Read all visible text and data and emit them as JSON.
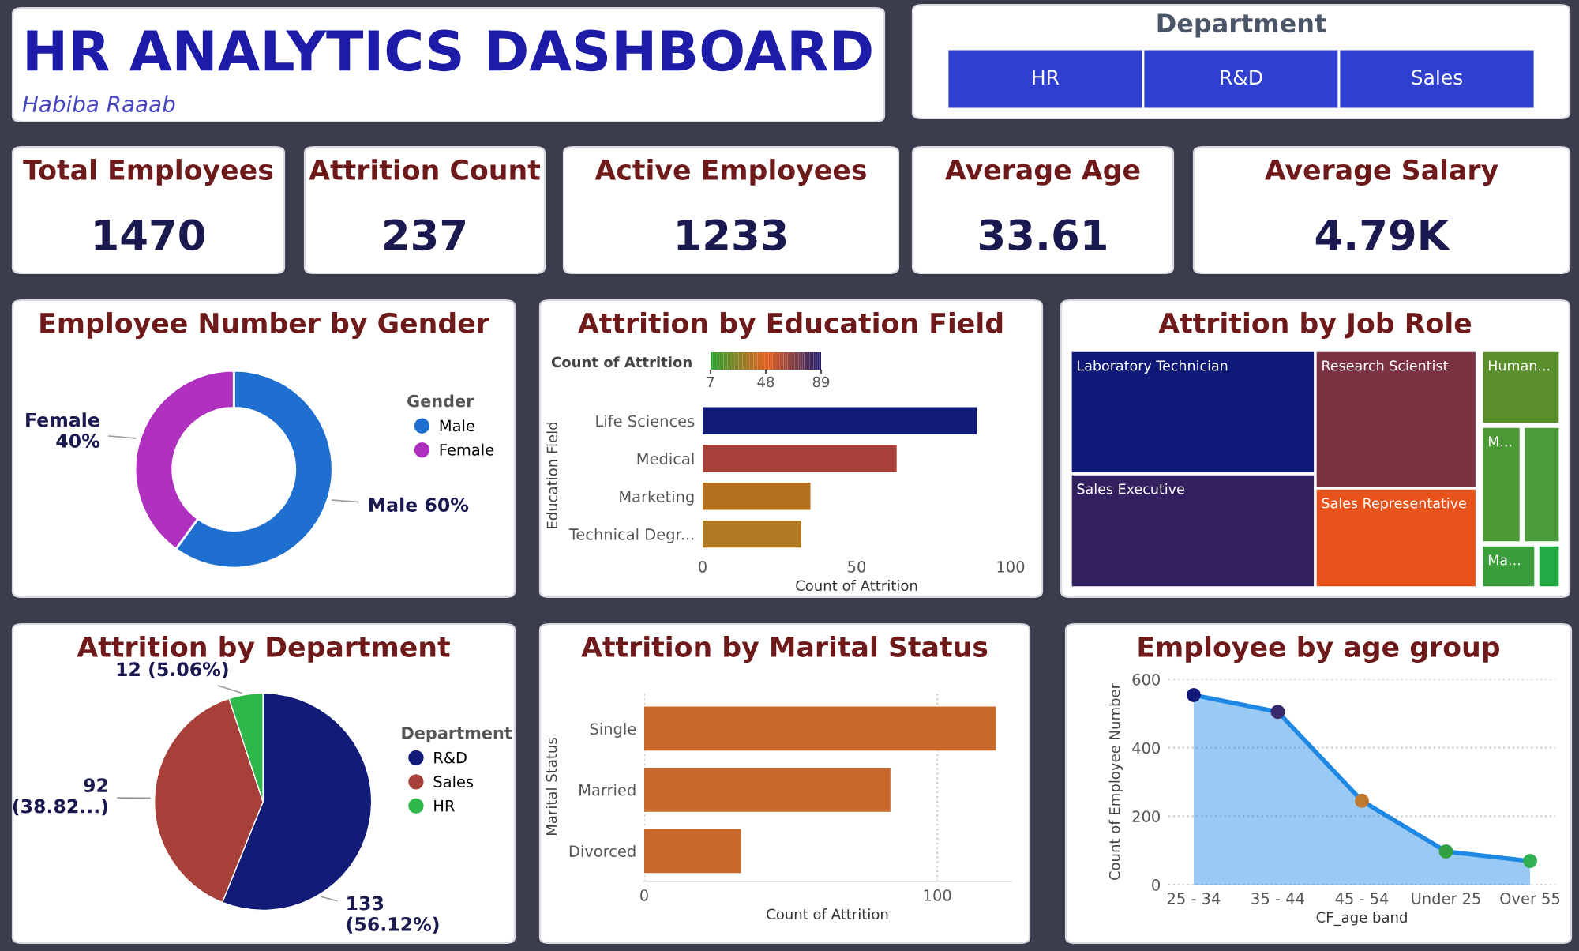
{
  "chart_data": [
    {
      "type": "other",
      "title": "HR ANALYTICS DASHBOARD",
      "subtitle": "Habiba Raaab"
    },
    {
      "type": "other",
      "title": "Department",
      "categories": [
        "HR",
        "R&D",
        "Sales"
      ],
      "colors": [
        "#2f3fd0",
        "#2f3fd0",
        "#2f3fd0"
      ]
    },
    {
      "type": "other",
      "title": "Total Employees",
      "annotations": [
        "1470"
      ]
    },
    {
      "type": "other",
      "title": "Attrition Count",
      "annotations": [
        "237"
      ]
    },
    {
      "type": "other",
      "title": "Active Employees",
      "annotations": [
        "1233"
      ]
    },
    {
      "type": "other",
      "title": "Average Age",
      "annotations": [
        "33.61"
      ]
    },
    {
      "type": "other",
      "title": "Average Salary",
      "annotations": [
        "4.79K"
      ]
    },
    {
      "type": "donut",
      "title": "Employee Number by Gender",
      "categories": [
        "Male",
        "Female"
      ],
      "values": [
        60,
        40
      ],
      "colors": [
        "#1e6fcf",
        "#b030c0"
      ],
      "value_labels": [
        "60%",
        "40%"
      ],
      "legend_title": "Gender",
      "legend": "right"
    },
    {
      "type": "bar",
      "orientation": "horizontal",
      "title": "Attrition by Education Field",
      "categories": [
        "Life Sciences",
        "Medical",
        "Marketing",
        "Technical Degr..."
      ],
      "values": [
        89,
        63,
        35,
        32
      ],
      "colors": [
        "#121c78",
        "#a8403a",
        "#b5701e",
        "#b07a25"
      ],
      "xlim": [
        0,
        100
      ],
      "xticks": [
        0,
        50,
        100
      ],
      "xlabel": "Count of Attrition",
      "ylabel": "Education Field",
      "clabel": "Count of Attrition",
      "clim": [
        7,
        89
      ],
      "cticks": [
        7,
        48,
        89
      ]
    },
    {
      "type": "other",
      "title": "Attrition by Job Role",
      "categories": [
        "Laboratory Technician",
        "Sales Executive",
        "Research Scientist",
        "Sales Representative",
        "Human...",
        "M...",
        null,
        "Ma...",
        null
      ],
      "colors": [
        "#0f1a78",
        "#33205e",
        "#7b3344",
        "#e8531b",
        "#5b8f2e",
        "#4c9a35",
        "#4a9c3a",
        "#3a9f3a",
        "#22aa44"
      ]
    },
    {
      "type": "pie",
      "title": "Attrition by Department",
      "categories": [
        "R&D",
        "Sales",
        "HR"
      ],
      "values": [
        133,
        92,
        12
      ],
      "colors": [
        "#121c78",
        "#a8403a",
        "#2eb84a"
      ],
      "value_labels": [
        "133\n(56.12%)",
        "92\n(38.82...)",
        "12 (5.06%)"
      ],
      "legend_title": "Department",
      "legend": "right"
    },
    {
      "type": "bar",
      "orientation": "horizontal",
      "title": "Attrition by Marital Status",
      "categories": [
        "Single",
        "Married",
        "Divorced"
      ],
      "values": [
        120,
        84,
        33
      ],
      "color": "#c8682a",
      "xlim": [
        0,
        125
      ],
      "xticks": [
        0,
        100
      ],
      "xlabel": "Count of Attrition",
      "ylabel": "Marital Status",
      "grid": "x"
    },
    {
      "type": "area",
      "title": "Employee by age group",
      "categories": [
        "25 - 34",
        "35 - 44",
        "45 - 54",
        "Under 25",
        "Over 55"
      ],
      "values": [
        554,
        505,
        245,
        97,
        69
      ],
      "color": "#1e88e5",
      "colors": [
        "#12187a",
        "#3a2a6a",
        "#c07a30",
        "#30a040",
        "#30b050"
      ],
      "marker": "circle",
      "ylim": [
        0,
        600
      ],
      "yticks": [
        0,
        200,
        400,
        600
      ],
      "xlabel": "CF_age band",
      "ylabel": "Count of Employee Number",
      "grid": "y"
    }
  ]
}
